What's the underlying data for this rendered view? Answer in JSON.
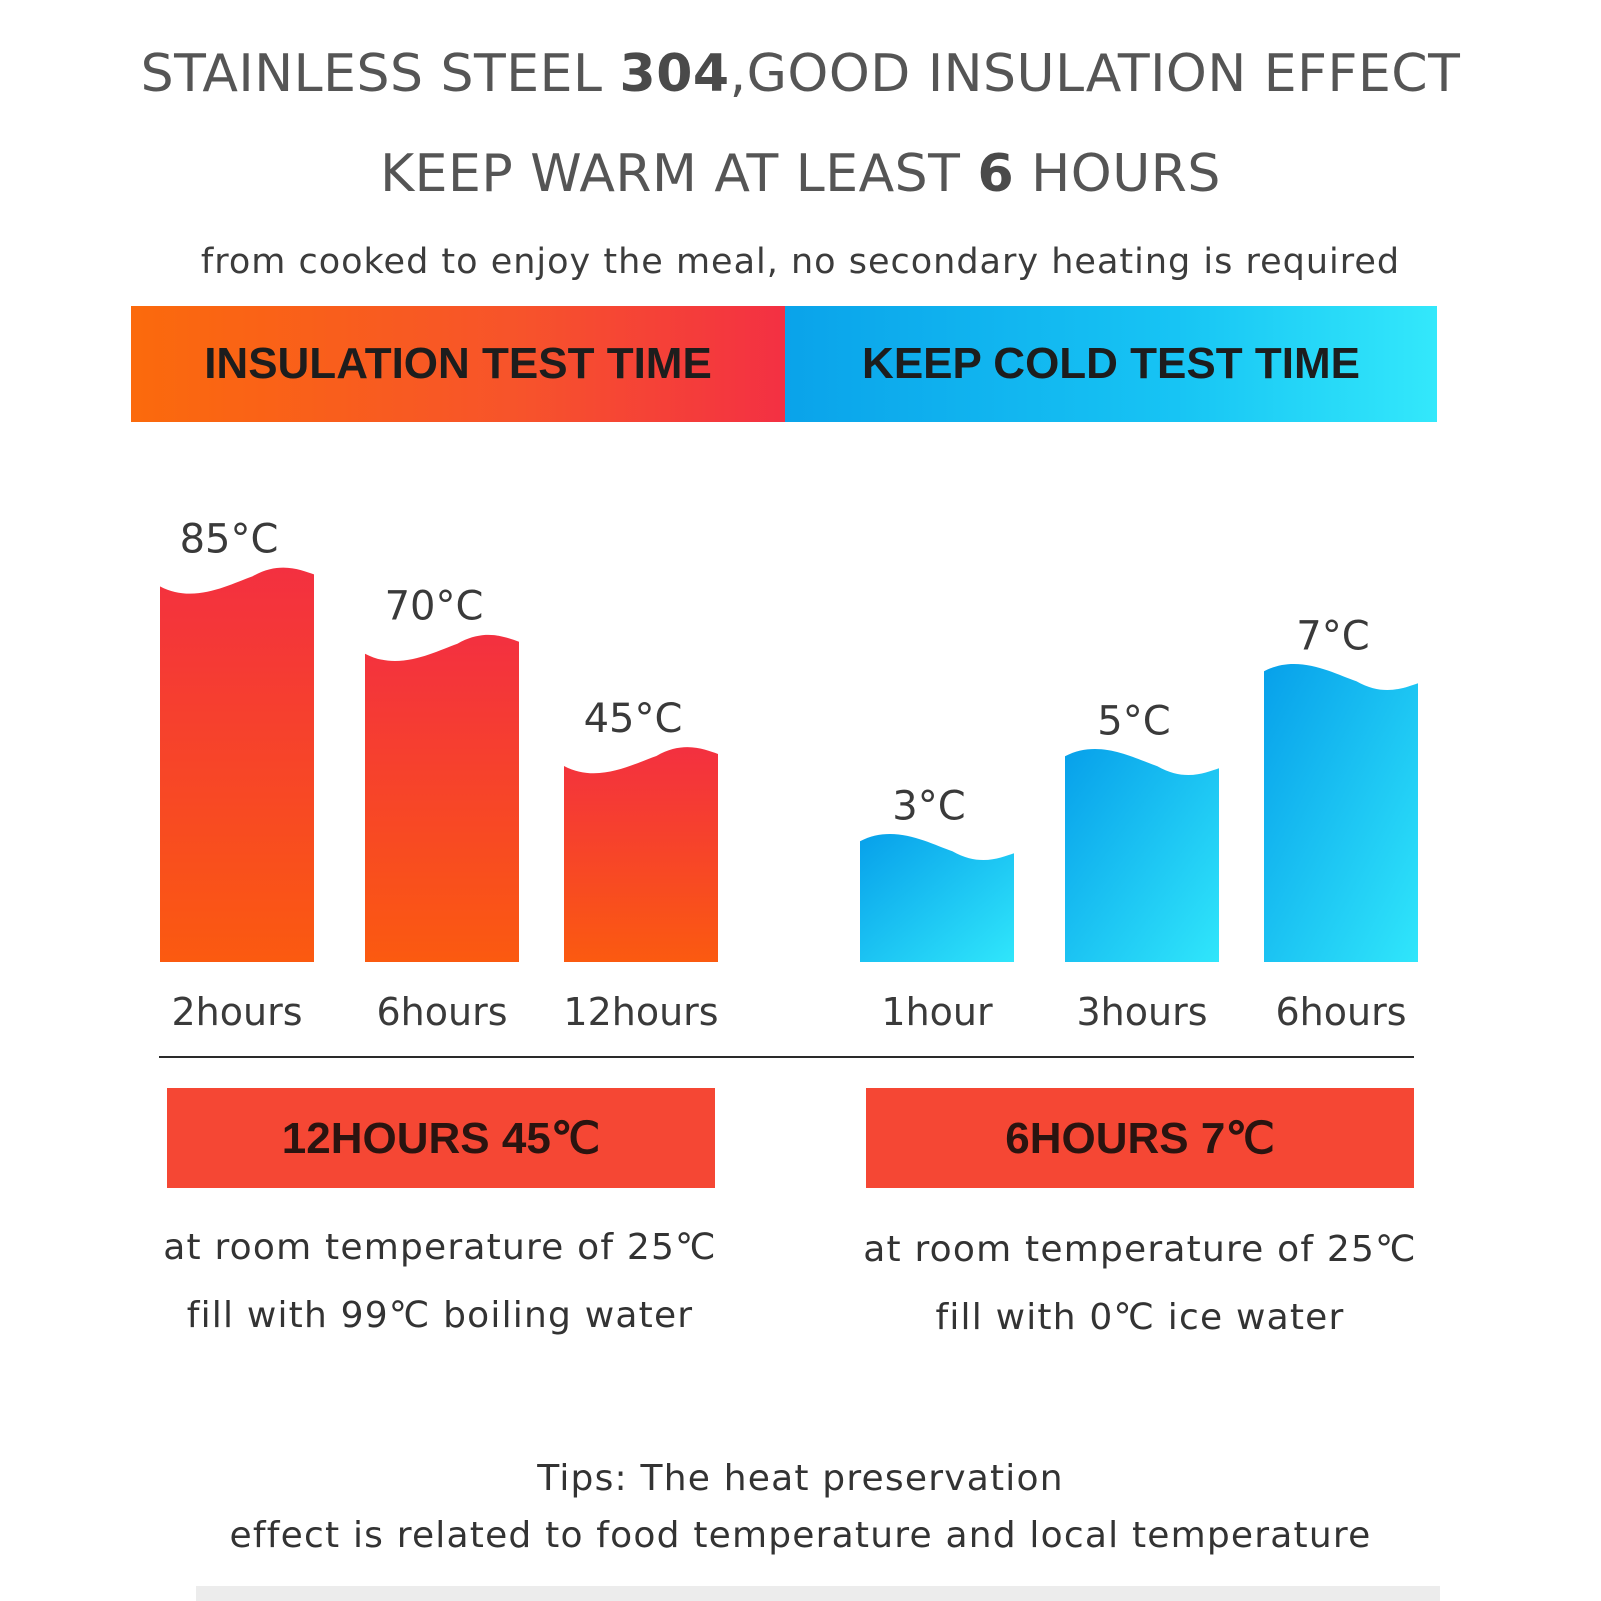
{
  "header": {
    "line1_prefix": "STAINLESS STEEL ",
    "line1_strong": "304",
    "line1_suffix": ",GOOD INSULATION EFFECT",
    "line2_prefix": "KEEP WARM AT LEAST ",
    "line2_strong": "6",
    "line2_suffix": " HOURS",
    "subtitle": "from cooked to enjoy the meal, no secondary heating is required"
  },
  "banners": {
    "hot": "INSULATION TEST TIME",
    "cold": "KEEP COLD TEST TIME"
  },
  "chart_data": [
    {
      "type": "bar",
      "title": "INSULATION TEST TIME",
      "categories": [
        "2hours",
        "6hours",
        "12hours"
      ],
      "values": [
        85,
        70,
        45
      ],
      "value_labels": [
        "85°C",
        "70°C",
        "45°C"
      ],
      "unit": "°C",
      "colors": [
        "#fb5a10",
        "#f33040"
      ],
      "grid": false
    },
    {
      "type": "bar",
      "title": "KEEP COLD TEST TIME",
      "categories": [
        "1hour",
        "3hours",
        "6hours"
      ],
      "values": [
        3,
        5,
        7
      ],
      "value_labels": [
        "3°C",
        "5°C",
        "7°C"
      ],
      "unit": "°C",
      "colors": [
        "#07a0ea",
        "#30e6fb"
      ],
      "grid": false
    }
  ],
  "results": {
    "hot": {
      "badge": "12HOURS 45℃",
      "line1": "at room temperature of 25℃",
      "line2": "fill with 99℃ boiling water"
    },
    "cold": {
      "badge": "6HOURS 7℃",
      "line1": "at room temperature of 25℃",
      "line2": "fill with 0℃ ice water"
    }
  },
  "tips": {
    "line1": "Tips:  The heat preservation",
    "line2": "effect is related to food temperature and local temperature"
  }
}
